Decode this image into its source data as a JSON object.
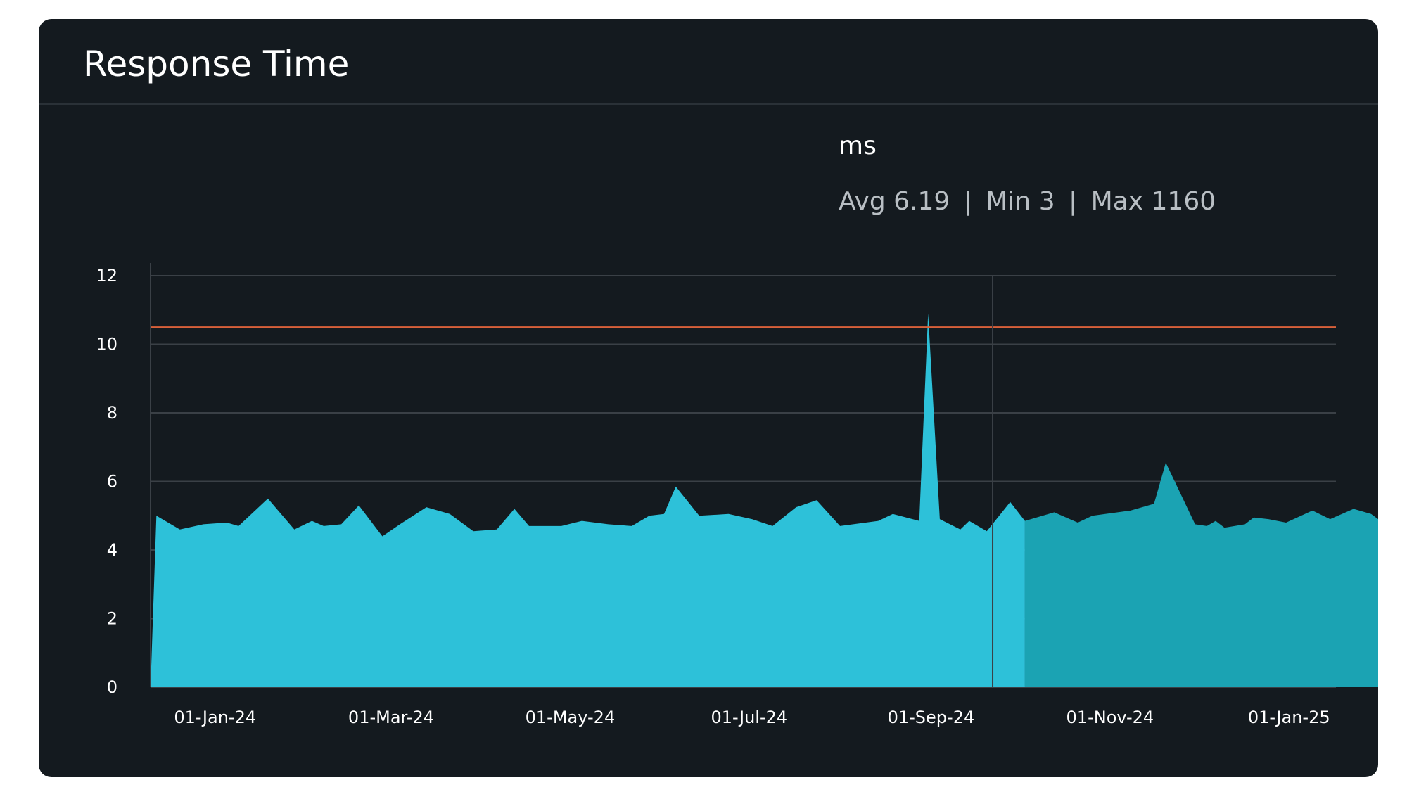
{
  "panel": {
    "title": "Response Time"
  },
  "legend": {
    "unit": "ms",
    "avg_label": "Avg",
    "avg_value": "6.19",
    "min_label": "Min",
    "min_value": "3",
    "max_label": "Max",
    "max_value": "1160",
    "separator": "|"
  },
  "colors": {
    "card_bg": "#141a1f",
    "area_primary": "#2dc1d9",
    "area_secondary": "#1ba3b3",
    "threshold": "#d8603a",
    "grid": "#3a4046"
  },
  "chart_data": {
    "type": "area",
    "y_ticks": [
      "0",
      "2",
      "4",
      "6",
      "8",
      "10",
      "12"
    ],
    "ylim": [
      0,
      12
    ],
    "x_ticks": [
      {
        "label": "01-Jan-24",
        "date": "2024-01-01"
      },
      {
        "label": "01-Mar-24",
        "date": "2024-03-01"
      },
      {
        "label": "01-May-24",
        "date": "2024-05-01"
      },
      {
        "label": "01-Jul-24",
        "date": "2024-07-01"
      },
      {
        "label": "01-Sep-24",
        "date": "2024-09-01"
      },
      {
        "label": "01-Nov-24",
        "date": "2024-11-01"
      },
      {
        "label": "01-Jan-25",
        "date": "2025-01-01"
      }
    ],
    "xlim": [
      "2023-12-10",
      "2025-01-17"
    ],
    "threshold": 10.5,
    "split_date": "2024-09-22",
    "grid": true,
    "series": [
      {
        "points": [
          [
            "2023-12-10",
            0
          ],
          [
            "2023-12-12",
            5.0
          ],
          [
            "2023-12-20",
            4.6
          ],
          [
            "2023-12-28",
            4.75
          ],
          [
            "2024-01-05",
            4.8
          ],
          [
            "2024-01-09",
            4.7
          ],
          [
            "2024-01-19",
            5.5
          ],
          [
            "2024-01-28",
            4.6
          ],
          [
            "2024-02-03",
            4.85
          ],
          [
            "2024-02-07",
            4.7
          ],
          [
            "2024-02-13",
            4.75
          ],
          [
            "2024-02-19",
            5.3
          ],
          [
            "2024-02-27",
            4.4
          ],
          [
            "2024-03-04",
            4.75
          ],
          [
            "2024-03-13",
            5.25
          ],
          [
            "2024-03-21",
            5.05
          ],
          [
            "2024-03-29",
            4.55
          ],
          [
            "2024-04-06",
            4.6
          ],
          [
            "2024-04-12",
            5.2
          ],
          [
            "2024-04-17",
            4.7
          ],
          [
            "2024-04-28",
            4.7
          ],
          [
            "2024-05-05",
            4.85
          ],
          [
            "2024-05-14",
            4.75
          ],
          [
            "2024-05-22",
            4.7
          ],
          [
            "2024-05-28",
            5.0
          ],
          [
            "2024-06-02",
            5.05
          ],
          [
            "2024-06-06",
            5.85
          ],
          [
            "2024-06-14",
            5.0
          ],
          [
            "2024-06-24",
            5.05
          ],
          [
            "2024-07-02",
            4.9
          ],
          [
            "2024-07-09",
            4.7
          ],
          [
            "2024-07-17",
            5.25
          ],
          [
            "2024-07-24",
            5.45
          ],
          [
            "2024-08-01",
            4.7
          ],
          [
            "2024-08-14",
            4.85
          ],
          [
            "2024-08-19",
            5.05
          ],
          [
            "2024-08-28",
            4.85
          ],
          [
            "2024-08-31",
            10.9
          ],
          [
            "2024-09-04",
            4.9
          ],
          [
            "2024-09-11",
            4.6
          ],
          [
            "2024-09-14",
            4.85
          ],
          [
            "2024-09-20",
            4.55
          ],
          [
            "2024-09-28",
            5.4
          ],
          [
            "2024-10-03",
            4.85
          ]
        ]
      },
      {
        "points": [
          [
            "2024-10-03",
            4.85
          ],
          [
            "2024-10-13",
            5.1
          ],
          [
            "2024-10-21",
            4.8
          ],
          [
            "2024-10-26",
            5.0
          ],
          [
            "2024-11-08",
            5.15
          ],
          [
            "2024-11-16",
            5.35
          ],
          [
            "2024-11-20",
            6.55
          ],
          [
            "2024-11-30",
            4.75
          ],
          [
            "2024-12-04",
            4.7
          ],
          [
            "2024-12-07",
            4.85
          ],
          [
            "2024-12-10",
            4.65
          ],
          [
            "2024-12-17",
            4.75
          ],
          [
            "2024-12-20",
            4.95
          ],
          [
            "2024-12-25",
            4.9
          ],
          [
            "2024-12-31",
            4.8
          ],
          [
            "2025-01-09",
            5.15
          ],
          [
            "2025-01-15",
            4.9
          ],
          [
            "2025-01-23",
            5.2
          ],
          [
            "2025-01-29",
            5.05
          ],
          [
            "2025-02-02",
            4.8
          ],
          [
            "2025-02-02",
            0
          ]
        ]
      }
    ]
  }
}
